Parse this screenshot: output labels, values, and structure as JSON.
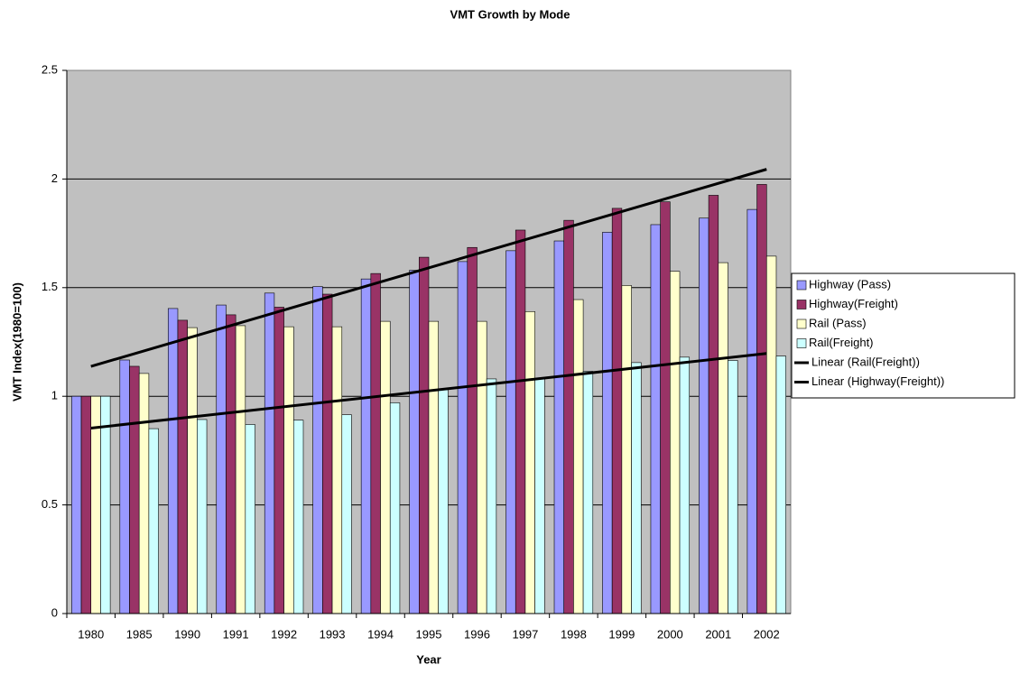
{
  "chart_data": {
    "type": "bar",
    "title": "VMT Growth by Mode",
    "x_label": "Year",
    "y_label": "VMT Index(1980=100)",
    "categories": [
      "1980",
      "1985",
      "1990",
      "1991",
      "1992",
      "1993",
      "1994",
      "1995",
      "1996",
      "1997",
      "1998",
      "1999",
      "2000",
      "2001",
      "2002"
    ],
    "series": [
      {
        "name": "Highway (Pass)",
        "color": "#9999ff",
        "values": [
          1,
          1.167,
          1.404,
          1.42,
          1.475,
          1.505,
          1.54,
          1.58,
          1.62,
          1.67,
          1.715,
          1.755,
          1.79,
          1.82,
          1.86
        ]
      },
      {
        "name": "Highway(Freight)",
        "color": "#993366",
        "values": [
          1,
          1.138,
          1.35,
          1.375,
          1.41,
          1.47,
          1.565,
          1.64,
          1.685,
          1.765,
          1.81,
          1.865,
          1.895,
          1.925,
          1.975
        ]
      },
      {
        "name": "Rail (Pass)",
        "color": "#ffffcc",
        "values": [
          1,
          1.105,
          1.316,
          1.325,
          1.32,
          1.32,
          1.345,
          1.345,
          1.345,
          1.39,
          1.445,
          1.51,
          1.575,
          1.615,
          1.645
        ]
      },
      {
        "name": "Rail(Freight)",
        "color": "#ccffff",
        "values": [
          1,
          0.851,
          0.893,
          0.87,
          0.89,
          0.915,
          0.97,
          1.03,
          1.08,
          1.08,
          1.115,
          1.155,
          1.18,
          1.165,
          1.185
        ]
      }
    ],
    "trendlines": [
      {
        "name": "Linear (Rail(Freight))",
        "series": 3,
        "color": "#000000"
      },
      {
        "name": "Linear (Highway(Freight))",
        "series": 1,
        "color": "#000000"
      }
    ],
    "ylim": [
      0,
      2.5
    ],
    "yticks": [
      0,
      0.5,
      1,
      1.5,
      2,
      2.5
    ],
    "grid": true,
    "plot_background": "#c0c0c0",
    "legend": "right"
  }
}
